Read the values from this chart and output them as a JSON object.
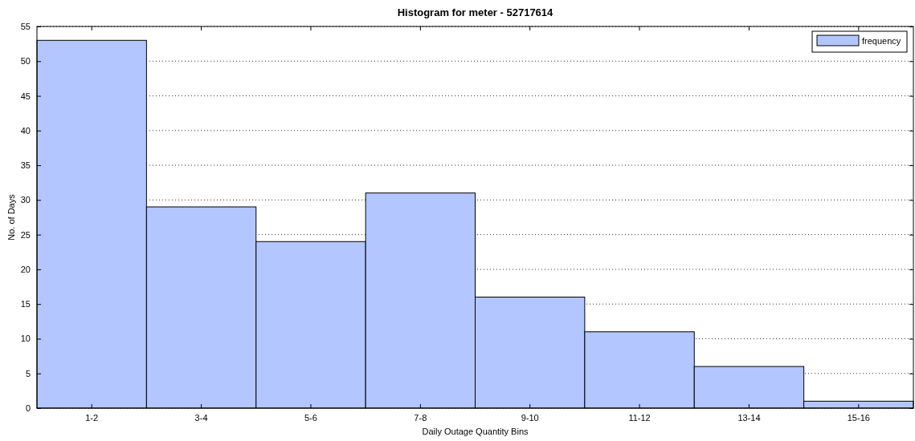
{
  "chart_data": {
    "type": "bar",
    "title": "Histogram for meter - 52717614",
    "xlabel": "Daily Outage Quantity Bins",
    "ylabel": "No. of Days",
    "categories": [
      "1-2",
      "3-4",
      "5-6",
      "7-8",
      "9-10",
      "11-12",
      "13-14",
      "15-16"
    ],
    "series": [
      {
        "name": "frequency",
        "color": "#b3c6ff",
        "values": [
          53,
          29,
          24,
          31,
          16,
          11,
          6,
          1
        ]
      }
    ],
    "ylim": [
      0,
      55
    ],
    "yticks": [
      0,
      5,
      10,
      15,
      20,
      25,
      30,
      35,
      40,
      45,
      50,
      55
    ],
    "grid": "y",
    "legend": "top right"
  }
}
